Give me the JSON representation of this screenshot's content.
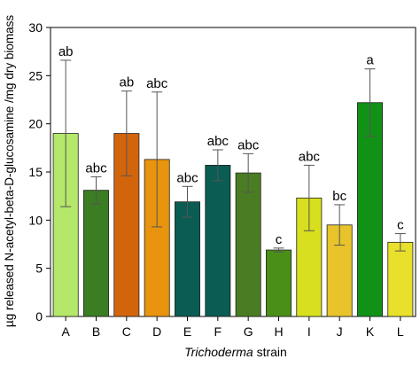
{
  "chart_data": {
    "type": "bar",
    "xlabel_italic": "Trichoderma",
    "xlabel_rest": " strain",
    "ylabel": "µg released N-acetyl-beta-D-glucosamine /mg dry biomass",
    "ylim": [
      0,
      30
    ],
    "yticks": [
      0,
      5,
      10,
      15,
      20,
      25,
      30
    ],
    "categories": [
      "A",
      "B",
      "C",
      "D",
      "E",
      "F",
      "G",
      "H",
      "I",
      "J",
      "K",
      "L"
    ],
    "values": [
      19.0,
      13.1,
      19.0,
      16.3,
      11.9,
      15.7,
      14.9,
      6.9,
      12.3,
      9.5,
      22.2,
      7.7
    ],
    "errors": [
      7.6,
      1.4,
      4.4,
      7.0,
      1.6,
      1.6,
      2.0,
      0.2,
      3.4,
      2.1,
      3.5,
      0.9
    ],
    "letters": [
      "ab",
      "abc",
      "ab",
      "abc",
      "abc",
      "abc",
      "abc",
      "c",
      "abc",
      "bc",
      "a",
      "c"
    ],
    "colors": [
      "#b5e86a",
      "#3a7d22",
      "#d2650c",
      "#e8940e",
      "#0b5c52",
      "#0b5c52",
      "#4a7d23",
      "#4a8f18",
      "#d8df1e",
      "#e8c32b",
      "#129117",
      "#e8e02b"
    ],
    "grid": false,
    "legend": "none"
  }
}
